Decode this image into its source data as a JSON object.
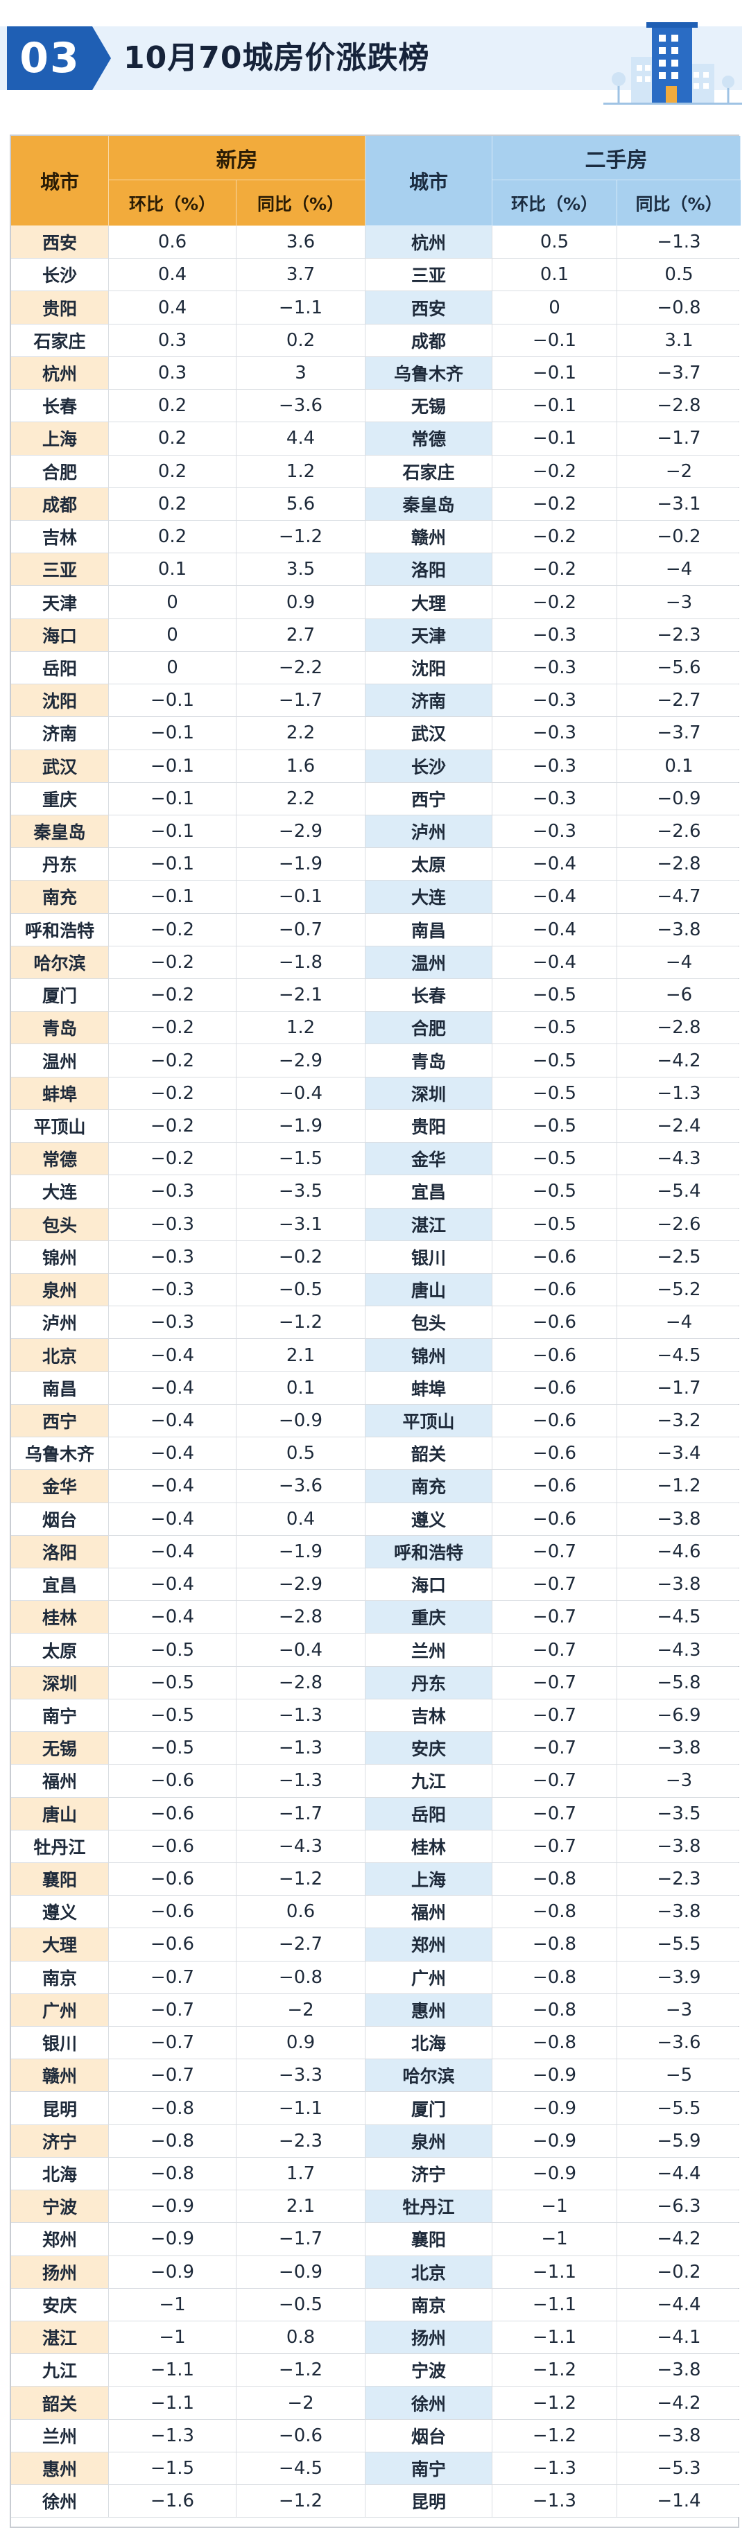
{
  "header": {
    "badge": "03",
    "title": "10月70城房价涨跌榜"
  },
  "table": {
    "headers": {
      "city": "城市",
      "new_house": "新房",
      "second_hand": "二手房",
      "mom": "环比（%）",
      "yoy": "同比（%）"
    },
    "rows": [
      [
        "西安",
        "0.6",
        "3.6",
        "杭州",
        "0.5",
        "−1.3"
      ],
      [
        "长沙",
        "0.4",
        "3.7",
        "三亚",
        "0.1",
        "0.5"
      ],
      [
        "贵阳",
        "0.4",
        "−1.1",
        "西安",
        "0",
        "−0.8"
      ],
      [
        "石家庄",
        "0.3",
        "0.2",
        "成都",
        "−0.1",
        "3.1"
      ],
      [
        "杭州",
        "0.3",
        "3",
        "乌鲁木齐",
        "−0.1",
        "−3.7"
      ],
      [
        "长春",
        "0.2",
        "−3.6",
        "无锡",
        "−0.1",
        "−2.8"
      ],
      [
        "上海",
        "0.2",
        "4.4",
        "常德",
        "−0.1",
        "−1.7"
      ],
      [
        "合肥",
        "0.2",
        "1.2",
        "石家庄",
        "−0.2",
        "−2"
      ],
      [
        "成都",
        "0.2",
        "5.6",
        "秦皇岛",
        "−0.2",
        "−3.1"
      ],
      [
        "吉林",
        "0.2",
        "−1.2",
        "赣州",
        "−0.2",
        "−0.2"
      ],
      [
        "三亚",
        "0.1",
        "3.5",
        "洛阳",
        "−0.2",
        "−4"
      ],
      [
        "天津",
        "0",
        "0.9",
        "大理",
        "−0.2",
        "−3"
      ],
      [
        "海口",
        "0",
        "2.7",
        "天津",
        "−0.3",
        "−2.3"
      ],
      [
        "岳阳",
        "0",
        "−2.2",
        "沈阳",
        "−0.3",
        "−5.6"
      ],
      [
        "沈阳",
        "−0.1",
        "−1.7",
        "济南",
        "−0.3",
        "−2.7"
      ],
      [
        "济南",
        "−0.1",
        "2.2",
        "武汉",
        "−0.3",
        "−3.7"
      ],
      [
        "武汉",
        "−0.1",
        "1.6",
        "长沙",
        "−0.3",
        "0.1"
      ],
      [
        "重庆",
        "−0.1",
        "2.2",
        "西宁",
        "−0.3",
        "−0.9"
      ],
      [
        "秦皇岛",
        "−0.1",
        "−2.9",
        "泸州",
        "−0.3",
        "−2.6"
      ],
      [
        "丹东",
        "−0.1",
        "−1.9",
        "太原",
        "−0.4",
        "−2.8"
      ],
      [
        "南充",
        "−0.1",
        "−0.1",
        "大连",
        "−0.4",
        "−4.7"
      ],
      [
        "呼和浩特",
        "−0.2",
        "−0.7",
        "南昌",
        "−0.4",
        "−3.8"
      ],
      [
        "哈尔滨",
        "−0.2",
        "−1.8",
        "温州",
        "−0.4",
        "−4"
      ],
      [
        "厦门",
        "−0.2",
        "−2.1",
        "长春",
        "−0.5",
        "−6"
      ],
      [
        "青岛",
        "−0.2",
        "1.2",
        "合肥",
        "−0.5",
        "−2.8"
      ],
      [
        "温州",
        "−0.2",
        "−2.9",
        "青岛",
        "−0.5",
        "−4.2"
      ],
      [
        "蚌埠",
        "−0.2",
        "−0.4",
        "深圳",
        "−0.5",
        "−1.3"
      ],
      [
        "平顶山",
        "−0.2",
        "−1.9",
        "贵阳",
        "−0.5",
        "−2.4"
      ],
      [
        "常德",
        "−0.2",
        "−1.5",
        "金华",
        "−0.5",
        "−4.3"
      ],
      [
        "大连",
        "−0.3",
        "−3.5",
        "宜昌",
        "−0.5",
        "−5.4"
      ],
      [
        "包头",
        "−0.3",
        "−3.1",
        "湛江",
        "−0.5",
        "−2.6"
      ],
      [
        "锦州",
        "−0.3",
        "−0.2",
        "银川",
        "−0.6",
        "−2.5"
      ],
      [
        "泉州",
        "−0.3",
        "−0.5",
        "唐山",
        "−0.6",
        "−5.2"
      ],
      [
        "泸州",
        "−0.3",
        "−1.2",
        "包头",
        "−0.6",
        "−4"
      ],
      [
        "北京",
        "−0.4",
        "2.1",
        "锦州",
        "−0.6",
        "−4.5"
      ],
      [
        "南昌",
        "−0.4",
        "0.1",
        "蚌埠",
        "−0.6",
        "−1.7"
      ],
      [
        "西宁",
        "−0.4",
        "−0.9",
        "平顶山",
        "−0.6",
        "−3.2"
      ],
      [
        "乌鲁木齐",
        "−0.4",
        "0.5",
        "韶关",
        "−0.6",
        "−3.4"
      ],
      [
        "金华",
        "−0.4",
        "−3.6",
        "南充",
        "−0.6",
        "−1.2"
      ],
      [
        "烟台",
        "−0.4",
        "0.4",
        "遵义",
        "−0.6",
        "−3.8"
      ],
      [
        "洛阳",
        "−0.4",
        "−1.9",
        "呼和浩特",
        "−0.7",
        "−4.6"
      ],
      [
        "宜昌",
        "−0.4",
        "−2.9",
        "海口",
        "−0.7",
        "−3.8"
      ],
      [
        "桂林",
        "−0.4",
        "−2.8",
        "重庆",
        "−0.7",
        "−4.5"
      ],
      [
        "太原",
        "−0.5",
        "−0.4",
        "兰州",
        "−0.7",
        "−4.3"
      ],
      [
        "深圳",
        "−0.5",
        "−2.8",
        "丹东",
        "−0.7",
        "−5.8"
      ],
      [
        "南宁",
        "−0.5",
        "−1.3",
        "吉林",
        "−0.7",
        "−6.9"
      ],
      [
        "无锡",
        "−0.5",
        "−1.3",
        "安庆",
        "−0.7",
        "−3.8"
      ],
      [
        "福州",
        "−0.6",
        "−1.3",
        "九江",
        "−0.7",
        "−3"
      ],
      [
        "唐山",
        "−0.6",
        "−1.7",
        "岳阳",
        "−0.7",
        "−3.5"
      ],
      [
        "牡丹江",
        "−0.6",
        "−4.3",
        "桂林",
        "−0.7",
        "−3.8"
      ],
      [
        "襄阳",
        "−0.6",
        "−1.2",
        "上海",
        "−0.8",
        "−2.3"
      ],
      [
        "遵义",
        "−0.6",
        "0.6",
        "福州",
        "−0.8",
        "−3.8"
      ],
      [
        "大理",
        "−0.6",
        "−2.7",
        "郑州",
        "−0.8",
        "−5.5"
      ],
      [
        "南京",
        "−0.7",
        "−0.8",
        "广州",
        "−0.8",
        "−3.9"
      ],
      [
        "广州",
        "−0.7",
        "−2",
        "惠州",
        "−0.8",
        "−3"
      ],
      [
        "银川",
        "−0.7",
        "0.9",
        "北海",
        "−0.8",
        "−3.6"
      ],
      [
        "赣州",
        "−0.7",
        "−3.3",
        "哈尔滨",
        "−0.9",
        "−5"
      ],
      [
        "昆明",
        "−0.8",
        "−1.1",
        "厦门",
        "−0.9",
        "−5.5"
      ],
      [
        "济宁",
        "−0.8",
        "−2.3",
        "泉州",
        "−0.9",
        "−5.9"
      ],
      [
        "北海",
        "−0.8",
        "1.7",
        "济宁",
        "−0.9",
        "−4.4"
      ],
      [
        "宁波",
        "−0.9",
        "2.1",
        "牡丹江",
        "−1",
        "−6.3"
      ],
      [
        "郑州",
        "−0.9",
        "−1.7",
        "襄阳",
        "−1",
        "−4.2"
      ],
      [
        "扬州",
        "−0.9",
        "−0.9",
        "北京",
        "−1.1",
        "−0.2"
      ],
      [
        "安庆",
        "−1",
        "−0.5",
        "南京",
        "−1.1",
        "−4.4"
      ],
      [
        "湛江",
        "−1",
        "0.8",
        "扬州",
        "−1.1",
        "−4.1"
      ],
      [
        "九江",
        "−1.1",
        "−1.2",
        "宁波",
        "−1.2",
        "−3.8"
      ],
      [
        "韶关",
        "−1.1",
        "−2",
        "徐州",
        "−1.2",
        "−4.2"
      ],
      [
        "兰州",
        "−1.3",
        "−0.6",
        "烟台",
        "−1.2",
        "−3.8"
      ],
      [
        "惠州",
        "−1.5",
        "−4.5",
        "南宁",
        "−1.3",
        "−5.3"
      ],
      [
        "徐州",
        "−1.6",
        "−1.2",
        "昆明",
        "−1.3",
        "−1.4"
      ]
    ]
  }
}
